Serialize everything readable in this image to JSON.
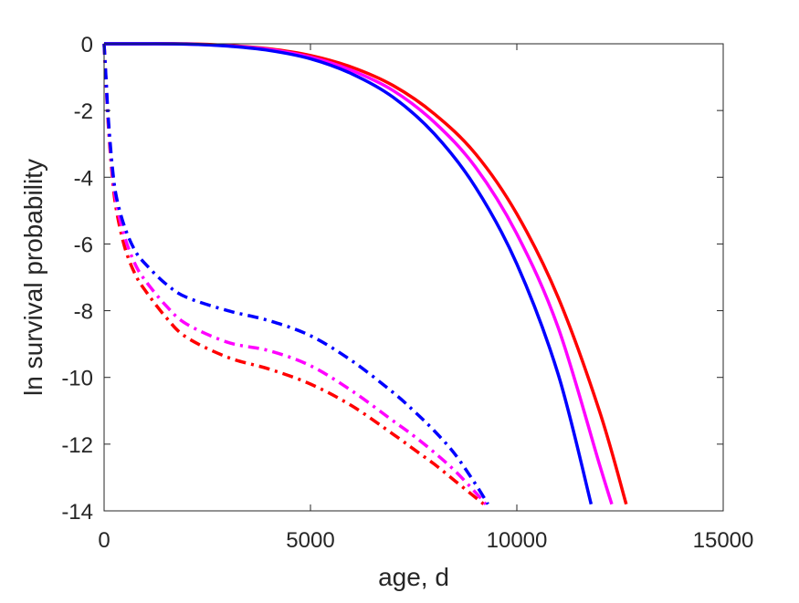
{
  "chart_data": {
    "type": "line",
    "xlabel": "age, d",
    "ylabel": "ln survival probability",
    "xlim": [
      0,
      15000
    ],
    "ylim": [
      -14,
      0
    ],
    "xticks": [
      0,
      5000,
      10000,
      15000
    ],
    "yticks": [
      0,
      -2,
      -4,
      -6,
      -8,
      -10,
      -12,
      -14
    ],
    "xtick_labels": [
      "0",
      "5000",
      "10000",
      "15000"
    ],
    "ytick_labels": [
      "0",
      "-2",
      "-4",
      "-6",
      "-8",
      "-10",
      "-12",
      "-14"
    ],
    "grid": false,
    "box": true,
    "series": [
      {
        "color": "#ff0000",
        "line_style": "solid",
        "x": [
          0,
          1000,
          2000,
          3000,
          4000,
          5000,
          6000,
          7000,
          8000,
          9000,
          10000,
          11000,
          12000,
          12650
        ],
        "y": [
          0,
          0,
          0,
          -0.05,
          -0.15,
          -0.35,
          -0.7,
          -1.25,
          -2.1,
          -3.3,
          -5.1,
          -7.6,
          -11.0,
          -13.8
        ]
      },
      {
        "color": "#ff00ff",
        "line_style": "solid",
        "x": [
          0,
          1000,
          2000,
          3000,
          4000,
          5000,
          6000,
          7000,
          8000,
          9000,
          10000,
          11000,
          12000,
          12300
        ],
        "y": [
          0,
          0,
          -0.01,
          -0.06,
          -0.17,
          -0.4,
          -0.8,
          -1.4,
          -2.35,
          -3.7,
          -5.7,
          -8.5,
          -12.6,
          -13.8
        ]
      },
      {
        "color": "#0000ff",
        "line_style": "solid",
        "x": [
          0,
          1000,
          2000,
          3000,
          4000,
          5000,
          6000,
          7000,
          8000,
          9000,
          10000,
          11000,
          11800
        ],
        "y": [
          0,
          0,
          -0.01,
          -0.07,
          -0.2,
          -0.45,
          -0.9,
          -1.6,
          -2.7,
          -4.3,
          -6.6,
          -9.9,
          -13.8
        ]
      },
      {
        "color": "#ff0000",
        "line_style": "dashdot",
        "x": [
          0,
          50,
          100,
          200,
          300,
          500,
          750,
          1000,
          1500,
          2000,
          3000,
          4000,
          5000,
          6000,
          7000,
          7500,
          8000,
          8500,
          9000,
          9200
        ],
        "y": [
          0,
          -1.2,
          -2.4,
          -4.0,
          -5.0,
          -6.1,
          -6.9,
          -7.4,
          -8.2,
          -8.8,
          -9.4,
          -9.75,
          -10.2,
          -10.85,
          -11.7,
          -12.15,
          -12.6,
          -13.1,
          -13.6,
          -13.8
        ]
      },
      {
        "color": "#ff00ff",
        "line_style": "dashdot",
        "x": [
          0,
          50,
          100,
          200,
          300,
          500,
          750,
          1000,
          1500,
          2000,
          3000,
          4000,
          5000,
          6000,
          7000,
          7500,
          8000,
          8500,
          9000,
          9250
        ],
        "y": [
          0,
          -1.2,
          -2.3,
          -3.85,
          -4.8,
          -5.8,
          -6.6,
          -7.1,
          -7.85,
          -8.4,
          -8.95,
          -9.2,
          -9.65,
          -10.4,
          -11.3,
          -11.75,
          -12.25,
          -12.8,
          -13.45,
          -13.8
        ]
      },
      {
        "color": "#0000ff",
        "line_style": "dashdot",
        "x": [
          0,
          50,
          100,
          200,
          300,
          500,
          750,
          1000,
          1500,
          2000,
          3000,
          4000,
          5000,
          6000,
          7000,
          7500,
          8000,
          8500,
          9000,
          9300
        ],
        "y": [
          0,
          -1.1,
          -2.2,
          -3.7,
          -4.6,
          -5.5,
          -6.2,
          -6.6,
          -7.2,
          -7.6,
          -8.0,
          -8.3,
          -8.75,
          -9.5,
          -10.45,
          -11.0,
          -11.6,
          -12.3,
          -13.2,
          -13.8
        ]
      }
    ]
  }
}
